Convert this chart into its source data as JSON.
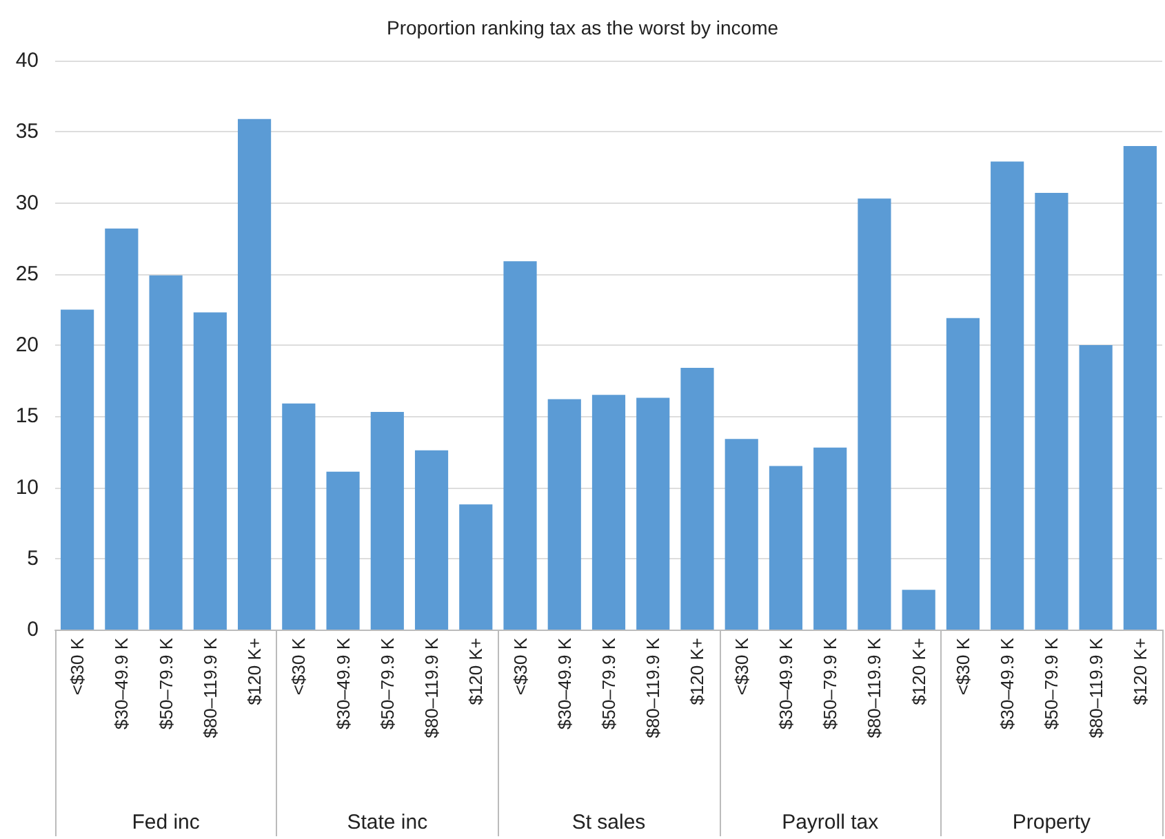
{
  "chart_data": {
    "type": "bar",
    "title": "Proportion ranking tax as the worst by income",
    "categories": [
      "<$30 K",
      "$30–49.9 K",
      "$50–79.9 K",
      "$80–119.9 K",
      "$120 K+",
      "<$30 K",
      "$30–49.9 K",
      "$50–79.9 K",
      "$80–119.9 K",
      "$120 K+",
      "<$30 K",
      "$30–49.9 K",
      "$50–79.9 K",
      "$80–119.9 K",
      "$120 K+",
      "<$30 K",
      "$30–49.9 K",
      "$50–79.9 K",
      "$80–119.9 K",
      "$120 K+",
      "<$30 K",
      "$30–49.9 K",
      "$50–79.9 K",
      "$80–119.9 K",
      "$120 K+"
    ],
    "values": [
      22.5,
      28.2,
      24.9,
      22.3,
      35.9,
      15.9,
      11.1,
      15.3,
      12.6,
      8.8,
      25.9,
      16.2,
      16.5,
      16.3,
      18.4,
      13.4,
      11.5,
      12.8,
      30.3,
      2.8,
      21.9,
      32.9,
      30.7,
      20.0,
      34.0
    ],
    "color": "#5b9bd5",
    "annotations": [
      "Fed inc",
      "State inc",
      "St sales",
      "Payroll tax",
      "Property"
    ],
    "ylim": [
      0,
      40
    ],
    "yticks": [
      0,
      5,
      10,
      15,
      20,
      25,
      30,
      35,
      40
    ],
    "grid": "y"
  }
}
